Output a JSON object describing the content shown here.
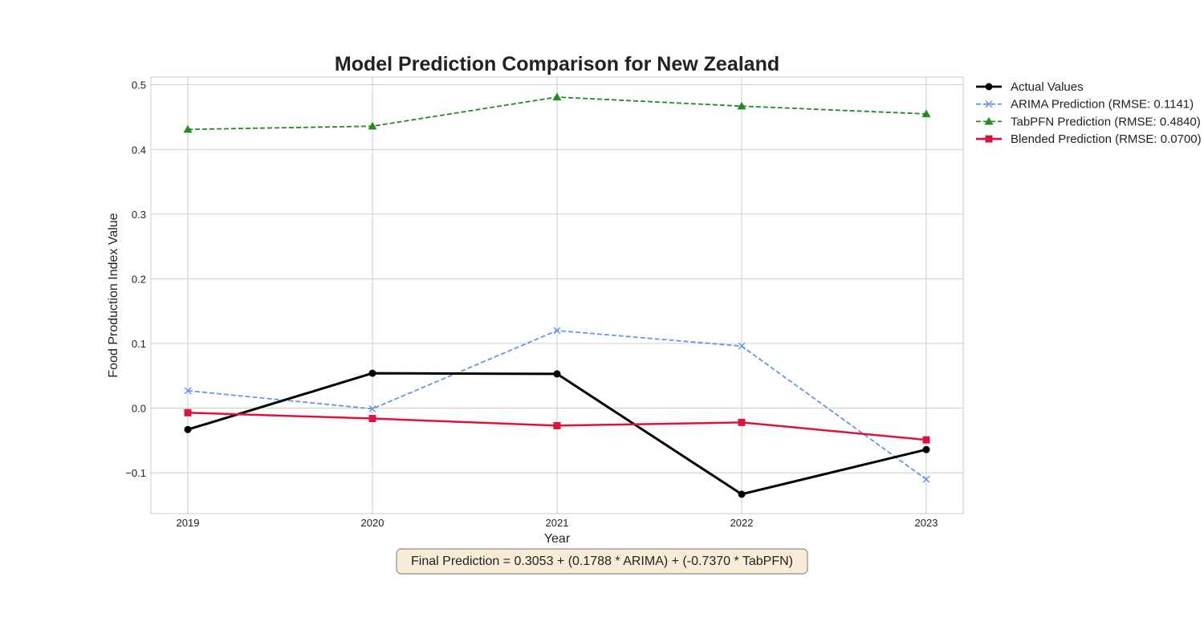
{
  "chart_data": {
    "type": "line",
    "title": "Model Prediction Comparison for New Zealand",
    "xlabel": "Year",
    "ylabel": "Food Production Index Value",
    "x": [
      2019,
      2020,
      2021,
      2022,
      2023
    ],
    "xlim": [
      2018.8,
      2023.2
    ],
    "ylim": [
      -0.163,
      0.512
    ],
    "yticks": [
      -0.1,
      0.0,
      0.1,
      0.2,
      0.3,
      0.4,
      0.5
    ],
    "ytick_labels": [
      "−0.1",
      "0.0",
      "0.1",
      "0.2",
      "0.3",
      "0.4",
      "0.5"
    ],
    "xtick_labels": [
      "2019",
      "2020",
      "2021",
      "2022",
      "2023"
    ],
    "grid": true,
    "legend_position": "outside-top-right",
    "series": [
      {
        "name": "Actual Values",
        "values": [
          -0.033,
          0.054,
          0.053,
          -0.133,
          -0.064
        ],
        "color": "#000000",
        "line_style": "solid",
        "marker": "circle"
      },
      {
        "name": "ARIMA Prediction (RMSE: 0.1141)",
        "values": [
          0.027,
          -0.001,
          0.12,
          0.096,
          -0.11
        ],
        "color": "#6495ed",
        "line_style": "dashed",
        "marker": "x"
      },
      {
        "name": "TabPFN Prediction (RMSE: 0.4840)",
        "values": [
          0.431,
          0.436,
          0.481,
          0.467,
          0.455
        ],
        "color": "#228b22",
        "line_style": "dashed",
        "marker": "triangle"
      },
      {
        "name": "Blended Prediction (RMSE: 0.0700)",
        "values": [
          -0.007,
          -0.016,
          -0.027,
          -0.022,
          -0.049
        ],
        "color": "#dc143c",
        "line_style": "solid",
        "marker": "square"
      }
    ],
    "annotation": "Final Prediction = 0.3053 + (0.1788 * ARIMA) + (-0.7370 * TabPFN)"
  }
}
